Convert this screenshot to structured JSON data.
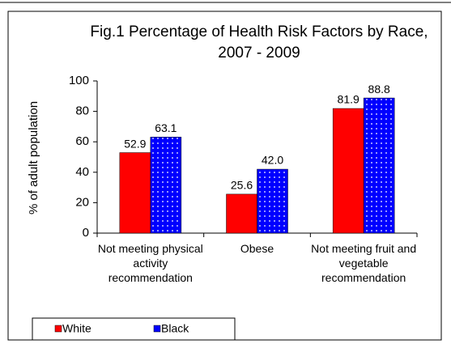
{
  "chart_data": {
    "type": "bar",
    "title": [
      "Fig.1  Percentage of Health Risk Factors by Race,",
      "2007 - 2009"
    ],
    "y_label": "% of adult population",
    "categories": [
      "Not meeting physical activity recommendation",
      "Obese",
      "Not meeting fruit and vegetable recommendation"
    ],
    "series": [
      {
        "name": "White",
        "color": "#ff0000",
        "values": [
          52.9,
          25.6,
          81.9
        ],
        "value_labels": [
          "52.9",
          "25.6",
          "81.9"
        ]
      },
      {
        "name": "Black",
        "color": "#0000ff",
        "values": [
          63.1,
          42,
          88.8
        ],
        "value_labels": [
          "63.1",
          "42.0",
          "88.8"
        ]
      }
    ],
    "ylim": [
      0,
      100
    ],
    "yticks": [
      0,
      20,
      40,
      60,
      80,
      100
    ],
    "grid": false,
    "legend": "bottom-left"
  }
}
